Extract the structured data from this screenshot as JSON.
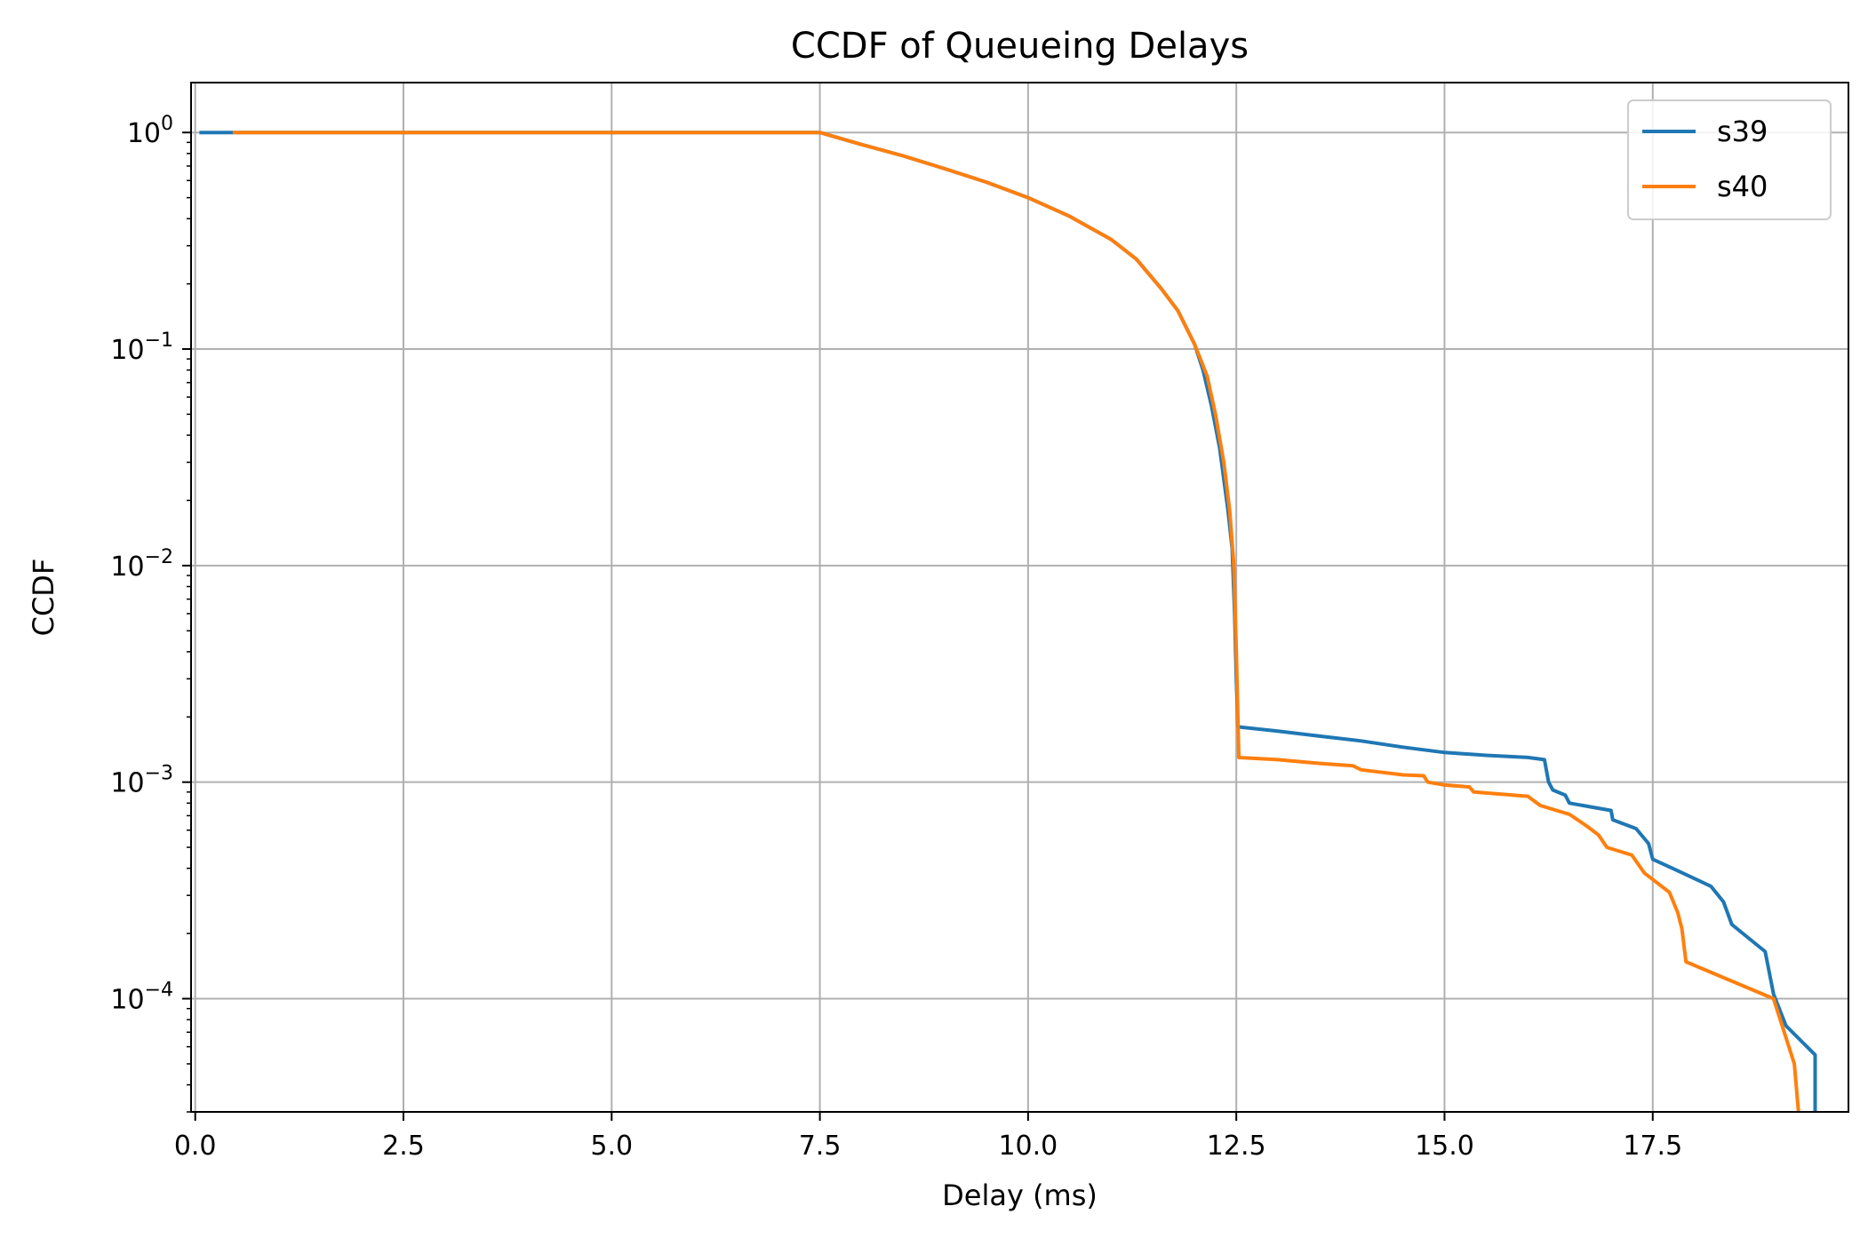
{
  "chart_data": {
    "type": "line",
    "title": "CCDF of Queueing Delays",
    "xlabel": "Delay (ms)",
    "ylabel": "CCDF",
    "xlim": [
      -0.05,
      19.85
    ],
    "ylim": [
      3e-05,
      1.7
    ],
    "yscale": "log",
    "grid": true,
    "legend_position": "top-right",
    "x_ticks": [
      0.0,
      2.5,
      5.0,
      7.5,
      10.0,
      12.5,
      15.0,
      17.5
    ],
    "x_tick_labels": [
      "0.0",
      "2.5",
      "5.0",
      "7.5",
      "10.0",
      "12.5",
      "15.0",
      "17.5"
    ],
    "y_ticks": [
      1,
      0.1,
      0.01,
      0.001,
      0.0001
    ],
    "y_tick_bases": [
      "10",
      "10",
      "10",
      "10",
      "10"
    ],
    "y_tick_exponents": [
      "0",
      "−1",
      "−2",
      "−3",
      "−4"
    ],
    "series": [
      {
        "name": "s39",
        "color": "#1f77b4",
        "points": [
          [
            0.05,
            1.0
          ],
          [
            7.5,
            1.0
          ],
          [
            8.0,
            0.88
          ],
          [
            8.5,
            0.78
          ],
          [
            9.0,
            0.68
          ],
          [
            9.5,
            0.59
          ],
          [
            10.0,
            0.5
          ],
          [
            10.5,
            0.41
          ],
          [
            11.0,
            0.32
          ],
          [
            11.3,
            0.26
          ],
          [
            11.6,
            0.19
          ],
          [
            11.8,
            0.15
          ],
          [
            12.0,
            0.105
          ],
          [
            12.1,
            0.08
          ],
          [
            12.2,
            0.055
          ],
          [
            12.3,
            0.035
          ],
          [
            12.4,
            0.018
          ],
          [
            12.45,
            0.012
          ],
          [
            12.48,
            0.006
          ],
          [
            12.5,
            0.003
          ],
          [
            12.52,
            0.0018
          ],
          [
            13.0,
            0.00172
          ],
          [
            13.5,
            0.00163
          ],
          [
            14.0,
            0.00155
          ],
          [
            14.5,
            0.00145
          ],
          [
            15.0,
            0.00137
          ],
          [
            15.5,
            0.00133
          ],
          [
            16.0,
            0.0013
          ],
          [
            16.2,
            0.00127
          ],
          [
            16.25,
            0.001
          ],
          [
            16.3,
            0.00092
          ],
          [
            16.45,
            0.00087
          ],
          [
            16.5,
            0.0008
          ],
          [
            17.0,
            0.00074
          ],
          [
            17.02,
            0.00067
          ],
          [
            17.3,
            0.00061
          ],
          [
            17.45,
            0.00052
          ],
          [
            17.5,
            0.00044
          ],
          [
            17.8,
            0.00039
          ],
          [
            18.2,
            0.00033
          ],
          [
            18.35,
            0.00028
          ],
          [
            18.45,
            0.00022
          ],
          [
            18.85,
            0.000165
          ],
          [
            18.95,
            0.000105
          ],
          [
            19.1,
            7.5e-05
          ],
          [
            19.45,
            5.5e-05
          ],
          [
            19.45,
            3e-05
          ]
        ]
      },
      {
        "name": "s40",
        "color": "#ff7f0e",
        "points": [
          [
            0.45,
            1.0
          ],
          [
            7.5,
            1.0
          ],
          [
            8.0,
            0.88
          ],
          [
            8.5,
            0.78
          ],
          [
            9.0,
            0.68
          ],
          [
            9.5,
            0.59
          ],
          [
            10.0,
            0.5
          ],
          [
            10.5,
            0.41
          ],
          [
            11.0,
            0.32
          ],
          [
            11.3,
            0.26
          ],
          [
            11.6,
            0.19
          ],
          [
            11.8,
            0.15
          ],
          [
            12.0,
            0.105
          ],
          [
            12.15,
            0.075
          ],
          [
            12.25,
            0.05
          ],
          [
            12.35,
            0.03
          ],
          [
            12.42,
            0.018
          ],
          [
            12.47,
            0.01
          ],
          [
            12.5,
            0.004
          ],
          [
            12.53,
            0.0013
          ],
          [
            13.0,
            0.00127
          ],
          [
            13.5,
            0.00122
          ],
          [
            13.9,
            0.00119
          ],
          [
            14.0,
            0.00114
          ],
          [
            14.5,
            0.00108
          ],
          [
            14.75,
            0.00107
          ],
          [
            14.8,
            0.001
          ],
          [
            15.0,
            0.00097
          ],
          [
            15.3,
            0.00095
          ],
          [
            15.35,
            0.0009
          ],
          [
            16.0,
            0.00086
          ],
          [
            16.15,
            0.00078
          ],
          [
            16.5,
            0.00071
          ],
          [
            16.7,
            0.00063
          ],
          [
            16.85,
            0.00057
          ],
          [
            16.95,
            0.0005
          ],
          [
            17.25,
            0.00046
          ],
          [
            17.4,
            0.00038
          ],
          [
            17.7,
            0.00031
          ],
          [
            17.8,
            0.00025
          ],
          [
            17.85,
            0.00021
          ],
          [
            17.9,
            0.000148
          ],
          [
            18.95,
            0.0001
          ],
          [
            19.2,
            5e-05
          ],
          [
            19.25,
            3e-05
          ]
        ]
      }
    ]
  }
}
